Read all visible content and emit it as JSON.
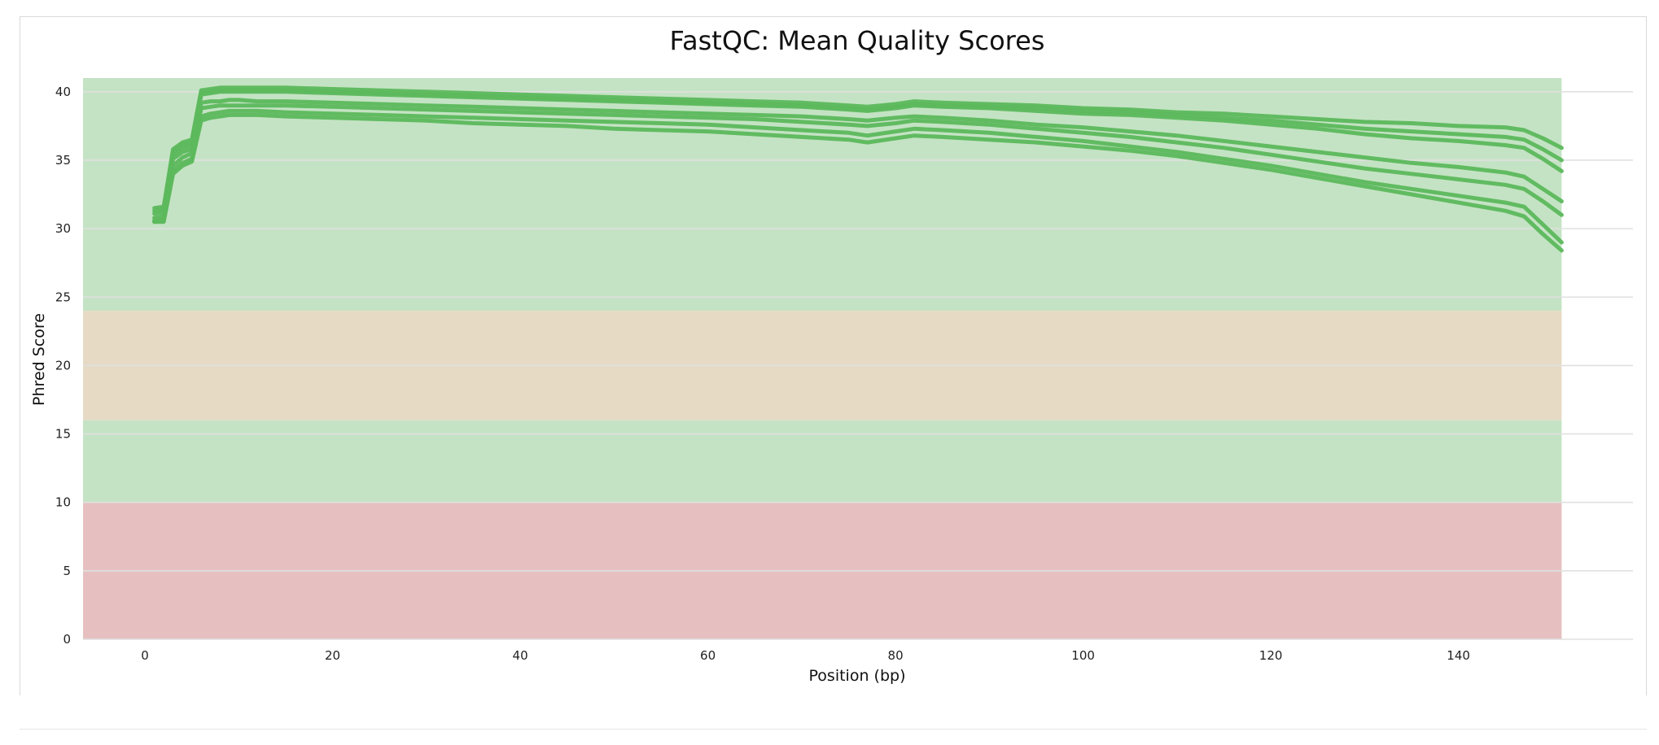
{
  "chart_data": {
    "type": "line",
    "title": "FastQC: Mean Quality Scores",
    "xlabel": "Position (bp)",
    "ylabel": "Phred Score",
    "xlim": [
      -6.6,
      158.6
    ],
    "ylim": [
      0,
      41
    ],
    "xticks": [
      0,
      20,
      40,
      60,
      80,
      100,
      120,
      140
    ],
    "yticks": [
      0,
      5,
      10,
      15,
      20,
      25,
      30,
      35,
      40
    ],
    "grid": true,
    "bands": [
      {
        "from": 0,
        "to": 10,
        "color": "#e6c0c0"
      },
      {
        "from": 10,
        "to": 16,
        "color": "#c4e3c4"
      },
      {
        "from": 16,
        "to": 24,
        "color": "#e6dac4"
      },
      {
        "from": 24,
        "to": 41,
        "color": "#c4e3c4"
      }
    ],
    "band_x_range": [
      -6.6,
      151
    ],
    "line_color": "#5cb85c",
    "x": [
      1,
      2,
      3,
      4,
      5,
      6,
      7,
      8,
      9,
      10,
      12,
      15,
      20,
      25,
      30,
      35,
      40,
      45,
      50,
      55,
      60,
      65,
      70,
      75,
      77,
      80,
      82,
      85,
      90,
      95,
      100,
      105,
      110,
      115,
      120,
      125,
      130,
      135,
      140,
      145,
      147,
      149,
      151
    ],
    "series": [
      {
        "values": [
          31.5,
          31.6,
          35.8,
          36.3,
          36.5,
          40.1,
          40.2,
          40.3,
          40.3,
          40.3,
          40.3,
          40.3,
          40.2,
          40.1,
          40.0,
          39.9,
          39.8,
          39.7,
          39.6,
          39.5,
          39.4,
          39.3,
          39.2,
          39.0,
          38.9,
          39.1,
          39.3,
          39.2,
          39.1,
          39.0,
          38.8,
          38.7,
          38.5,
          38.4,
          38.2,
          38.0,
          37.8,
          37.7,
          37.5,
          37.4,
          37.2,
          36.6,
          35.9
        ]
      },
      {
        "values": [
          31.3,
          31.4,
          35.6,
          36.1,
          36.3,
          39.9,
          40.0,
          40.1,
          40.1,
          40.1,
          40.1,
          40.1,
          40.0,
          39.9,
          39.8,
          39.7,
          39.6,
          39.5,
          39.4,
          39.3,
          39.2,
          39.1,
          39.0,
          38.8,
          38.7,
          38.9,
          39.1,
          39.0,
          38.9,
          38.8,
          38.6,
          38.5,
          38.3,
          38.1,
          37.9,
          37.6,
          37.3,
          37.1,
          36.9,
          36.7,
          36.5,
          35.8,
          35.0
        ]
      },
      {
        "values": [
          31.1,
          31.2,
          35.4,
          35.9,
          36.1,
          39.8,
          39.9,
          40.0,
          40.0,
          40.0,
          40.0,
          40.0,
          39.9,
          39.8,
          39.7,
          39.6,
          39.5,
          39.4,
          39.3,
          39.2,
          39.1,
          39.0,
          38.9,
          38.7,
          38.6,
          38.8,
          39.0,
          38.9,
          38.8,
          38.6,
          38.4,
          38.3,
          38.1,
          37.9,
          37.6,
          37.3,
          36.9,
          36.6,
          36.4,
          36.1,
          35.9,
          35.1,
          34.2
        ]
      },
      {
        "values": [
          30.8,
          30.9,
          35.1,
          35.6,
          35.8,
          39.2,
          39.3,
          39.3,
          39.4,
          39.4,
          39.3,
          39.3,
          39.2,
          39.1,
          39.0,
          38.9,
          38.8,
          38.7,
          38.6,
          38.5,
          38.4,
          38.3,
          38.2,
          38.0,
          37.9,
          38.1,
          38.2,
          38.1,
          37.9,
          37.6,
          37.4,
          37.1,
          36.8,
          36.4,
          36.0,
          35.6,
          35.2,
          34.8,
          34.5,
          34.1,
          33.8,
          32.9,
          32.0
        ]
      },
      {
        "values": [
          30.6,
          30.7,
          34.6,
          35.2,
          35.5,
          38.8,
          38.9,
          39.0,
          39.0,
          39.0,
          39.0,
          39.0,
          38.9,
          38.8,
          38.7,
          38.6,
          38.5,
          38.4,
          38.3,
          38.2,
          38.1,
          38.0,
          37.8,
          37.6,
          37.5,
          37.7,
          37.9,
          37.8,
          37.6,
          37.3,
          37.0,
          36.7,
          36.3,
          35.9,
          35.4,
          34.9,
          34.4,
          34.0,
          33.6,
          33.2,
          32.9,
          32.0,
          31.0
        ]
      },
      {
        "values": [
          30.5,
          30.6,
          34.2,
          34.8,
          35.1,
          38.2,
          38.4,
          38.5,
          38.6,
          38.6,
          38.6,
          38.5,
          38.4,
          38.3,
          38.2,
          38.1,
          38.0,
          37.9,
          37.8,
          37.7,
          37.6,
          37.4,
          37.2,
          37.0,
          36.8,
          37.1,
          37.3,
          37.2,
          37.0,
          36.7,
          36.4,
          36.0,
          35.6,
          35.1,
          34.6,
          34.0,
          33.4,
          32.9,
          32.4,
          31.9,
          31.6,
          30.3,
          29.0
        ]
      },
      {
        "values": [
          30.5,
          30.5,
          34.0,
          34.6,
          34.9,
          37.9,
          38.1,
          38.2,
          38.3,
          38.3,
          38.3,
          38.2,
          38.1,
          38.0,
          37.9,
          37.7,
          37.6,
          37.5,
          37.3,
          37.2,
          37.1,
          36.9,
          36.7,
          36.5,
          36.3,
          36.6,
          36.8,
          36.7,
          36.5,
          36.3,
          36.0,
          35.7,
          35.3,
          34.8,
          34.3,
          33.7,
          33.1,
          32.5,
          31.9,
          31.3,
          30.9,
          29.6,
          28.4
        ]
      }
    ]
  }
}
